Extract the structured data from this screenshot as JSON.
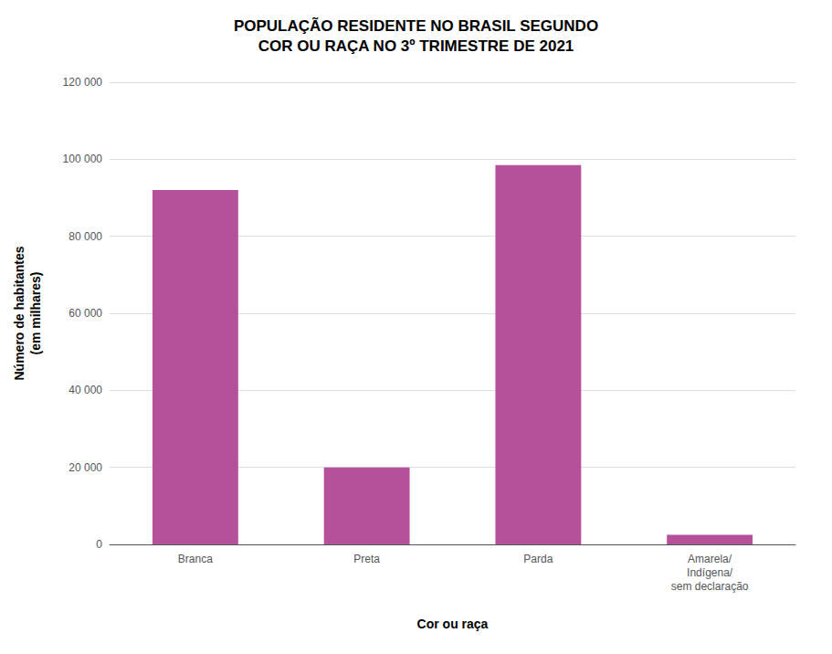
{
  "chart_data": {
    "type": "bar",
    "title": "POPULAÇÃO RESIDENTE NO BRASIL SEGUNDO\nCOR OU RAÇA NO 3º TRIMESTRE DE 2021",
    "ylabel": "Número de habitantes\n(em milhares)",
    "xlabel": "Cor ou raça",
    "categories": [
      "Branca",
      "Preta",
      "Parda",
      "Amarela/\nIndígena/\nsem declaração"
    ],
    "values": [
      92000,
      20000,
      98500,
      2500
    ],
    "color": "#b5519a",
    "ylim": [
      0,
      120000
    ],
    "yticks": [
      0,
      {
        "value": 20000,
        "label": "20 000"
      },
      {
        "value": 40000,
        "label": "40 000"
      },
      {
        "value": 60000,
        "label": "60 000"
      },
      {
        "value": 80000,
        "label": "80 000"
      },
      {
        "value": 100000,
        "label": "100 000"
      },
      {
        "value": 120000,
        "label": "120 000"
      }
    ],
    "grid": true
  }
}
